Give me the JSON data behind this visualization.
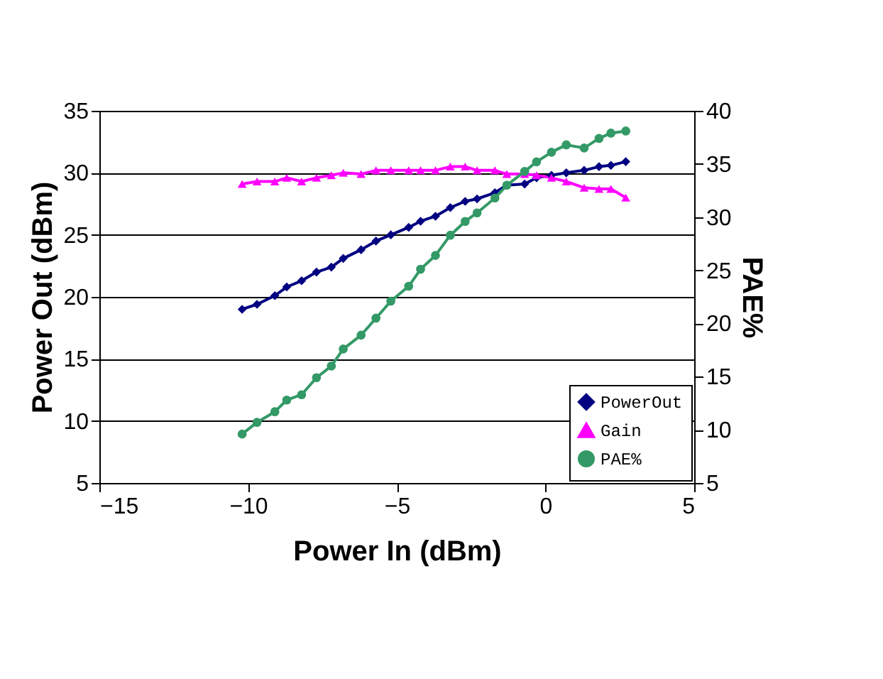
{
  "chart_data": {
    "type": "line",
    "xlabel": "Power In (dBm)",
    "ylabel": "Power Out (dBm)",
    "y2label": "PAE%",
    "x": [
      -10.2,
      -9.7,
      -9.1,
      -8.7,
      -8.2,
      -7.7,
      -7.2,
      -6.8,
      -6.2,
      -5.7,
      -5.2,
      -4.6,
      -4.2,
      -3.7,
      -3.2,
      -2.7,
      -2.3,
      -1.7,
      -1.3,
      -0.7,
      -0.3,
      0.2,
      0.7,
      1.3,
      1.8,
      2.2,
      2.7
    ],
    "xlim": [
      -15,
      5
    ],
    "xticks": [
      -15,
      -10,
      -5,
      0,
      5
    ],
    "ylim": [
      5,
      35
    ],
    "yticks": [
      5,
      10,
      15,
      20,
      25,
      30,
      35
    ],
    "y2lim": [
      5,
      40
    ],
    "y2ticks": [
      5,
      10,
      15,
      20,
      25,
      30,
      35,
      40
    ],
    "grid": "y",
    "legend": "bottom right",
    "series": [
      {
        "name": "PowerOut",
        "color": "#000080",
        "marker": "diamond",
        "values": [
          19.0,
          19.4,
          20.1,
          20.8,
          21.3,
          22.0,
          22.4,
          23.1,
          23.8,
          24.5,
          25.0,
          25.6,
          26.1,
          26.5,
          27.2,
          27.7,
          27.9,
          28.4,
          29.0,
          29.1,
          29.6,
          29.8,
          30.0,
          30.2,
          30.5,
          30.6,
          30.9
        ]
      },
      {
        "name": "Gain",
        "color": "#ff00ff",
        "marker": "triangle",
        "values": [
          29.1,
          29.3,
          29.3,
          29.6,
          29.3,
          29.6,
          29.8,
          30.0,
          29.9,
          30.2,
          30.2,
          30.2,
          30.2,
          30.2,
          30.5,
          30.5,
          30.2,
          30.2,
          29.9,
          29.9,
          29.8,
          29.6,
          29.3,
          28.8,
          28.7,
          28.7,
          28.0
        ]
      },
      {
        "name": "PAE%",
        "color": "#339966",
        "marker": "circle",
        "axis": "y2",
        "values": [
          9.6,
          10.7,
          11.7,
          12.8,
          13.3,
          14.9,
          16.0,
          17.6,
          18.9,
          20.5,
          22.1,
          23.5,
          25.1,
          26.4,
          28.3,
          29.6,
          30.4,
          31.8,
          33.0,
          34.3,
          35.2,
          36.1,
          36.8,
          36.5,
          37.4,
          37.9,
          38.1
        ]
      }
    ]
  }
}
